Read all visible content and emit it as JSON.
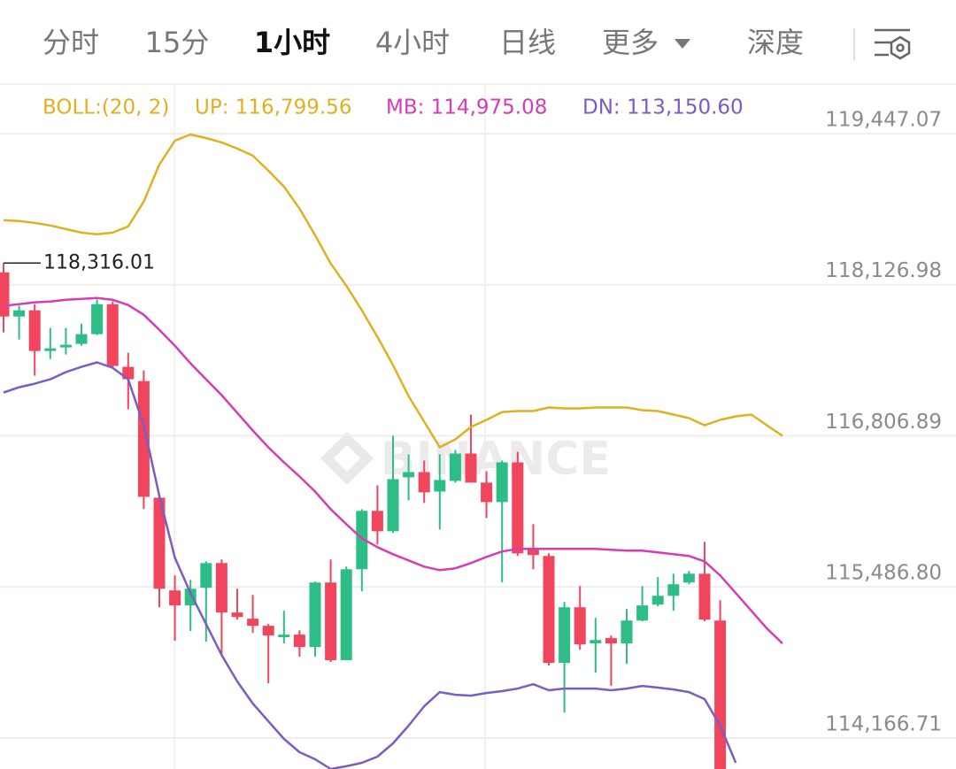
{
  "tabs": [
    "分时",
    "15分",
    "1小时",
    "4小时",
    "日线",
    "更多",
    "深度"
  ],
  "active_tab": 2,
  "chart_data": {
    "type": "candlestick",
    "legend": [
      {
        "text": "BOLL:(20, 2)",
        "color": "#e0b020"
      },
      {
        "text": "UP: 116,799.56",
        "color": "#e0b020"
      },
      {
        "text": "MB: 114,975.08",
        "color": "#d63cb4"
      },
      {
        "text": "DN: 113,150.60",
        "color": "#7b5cc2"
      }
    ],
    "watermark": "BINANCE",
    "ylim": [
      113896,
      119872
    ],
    "yticks": [
      {
        "value": 119447.07,
        "label": "119,447.07"
      },
      {
        "value": 118126.98,
        "label": "118,126.98"
      },
      {
        "value": 116806.89,
        "label": "116,806.89"
      },
      {
        "value": 115486.8,
        "label": "115,486.80"
      },
      {
        "value": 114166.71,
        "label": "114,166.71"
      }
    ],
    "grid": true,
    "up_color": "#2ebd85",
    "down_color": "#f0455c",
    "open": [
      118235,
      117849,
      117903,
      117548,
      117579,
      117610,
      117695,
      117957,
      117409,
      117285,
      116266,
      115456,
      115325,
      115479,
      115695,
      115263,
      115209,
      115147,
      115047,
      115070,
      114962,
      115525,
      114846,
      115641,
      116151,
      115973,
      116444,
      116490,
      116320,
      116413,
      116652,
      116398,
      116228,
      116575,
      115811,
      115757,
      114823,
      115309,
      114993,
      115039,
      114993,
      115193,
      115332,
      115409,
      115525,
      115602,
      115193
    ],
    "high": [
      118316.01,
      117942,
      117957,
      117749,
      117749,
      117787,
      117996,
      117980,
      117532,
      117378,
      116282,
      115587,
      115548,
      115711,
      115726,
      115471,
      115417,
      115162,
      115278,
      115108,
      115533,
      115726,
      115664,
      116166,
      116374,
      116807,
      116645,
      116591,
      116645,
      116683,
      116992,
      116498,
      116591,
      116668,
      116035,
      115780,
      115355,
      115494,
      115216,
      115062,
      115294,
      115494,
      115572,
      115602,
      115626,
      115880,
      115371
    ],
    "low": [
      117710,
      117648,
      117332,
      117478,
      117517,
      117594,
      117687,
      117393,
      117038,
      116166,
      115309,
      115016,
      115101,
      115008,
      114892,
      115201,
      115085,
      114645,
      114993,
      114877,
      114877,
      114830,
      114846,
      115448,
      115857,
      115958,
      116243,
      116220,
      115988,
      116398,
      116398,
      116089,
      115525,
      115757,
      115641,
      114800,
      114390,
      114939,
      114738,
      114622,
      114815,
      115186,
      115317,
      115278,
      115510,
      115186,
      113700
    ],
    "close": [
      117849,
      117903,
      117548,
      117571,
      117602,
      117695,
      117957,
      117417,
      117301,
      116274,
      115471,
      115325,
      115471,
      115695,
      115263,
      115224,
      115147,
      115062,
      115070,
      114962,
      115525,
      114846,
      115641,
      116151,
      115973,
      116428,
      116490,
      116313,
      116421,
      116652,
      116398,
      116228,
      116575,
      115780,
      115765,
      114823,
      115309,
      114985,
      115023,
      114993,
      115193,
      115325,
      115409,
      115510,
      115602,
      115201,
      113811
    ],
    "high_marker": {
      "value": 118316.01,
      "label": "118,316.01"
    },
    "series": [
      {
        "color": "#e0b020",
        "values": [
          118690,
          118683,
          118667,
          118644,
          118613,
          118582,
          118567,
          118582,
          118636,
          118853,
          119177,
          119385,
          119439,
          119408,
          119370,
          119316,
          119254,
          119123,
          118984,
          118791,
          118559,
          118312,
          118119,
          117903,
          117671,
          117424,
          117154,
          116930,
          116706,
          116776,
          116884,
          116946,
          117015,
          117023,
          117023,
          117054,
          117046,
          117046,
          117054,
          117054,
          117054,
          117031,
          117023,
          116992,
          116961,
          116899,
          116946,
          116977,
          116992,
          116899,
          116807
        ]
      },
      {
        "color": "#d63cb4",
        "values": [
          117942,
          117957,
          117973,
          117980,
          117996,
          118003,
          118011,
          117996,
          117949,
          117864,
          117733,
          117594,
          117440,
          117301,
          117162,
          117008,
          116853,
          116706,
          116575,
          116452,
          116320,
          116166,
          116035,
          115911,
          115834,
          115772,
          115718,
          115664,
          115633,
          115649,
          115695,
          115749,
          115796,
          115819,
          115819,
          115819,
          115819,
          115819,
          115819,
          115811,
          115803,
          115803,
          115788,
          115772,
          115757,
          115710,
          115587,
          115433,
          115278,
          115124,
          114993
        ]
      },
      {
        "color": "#7b5cc2",
        "values": [
          117185,
          117231,
          117262,
          117301,
          117363,
          117409,
          117448,
          117401,
          117301,
          116899,
          116282,
          115741,
          115433,
          115162,
          114892,
          114661,
          114468,
          114313,
          114159,
          114043,
          113981,
          113896,
          113920,
          113950,
          114004,
          114120,
          114275,
          114444,
          114568,
          114545,
          114537,
          114560,
          114576,
          114599,
          114637,
          114584,
          114599,
          114599,
          114599,
          114584,
          114599,
          114622,
          114607,
          114591,
          114568,
          114507,
          114275,
          113950,
          null,
          null,
          null
        ]
      }
    ]
  }
}
